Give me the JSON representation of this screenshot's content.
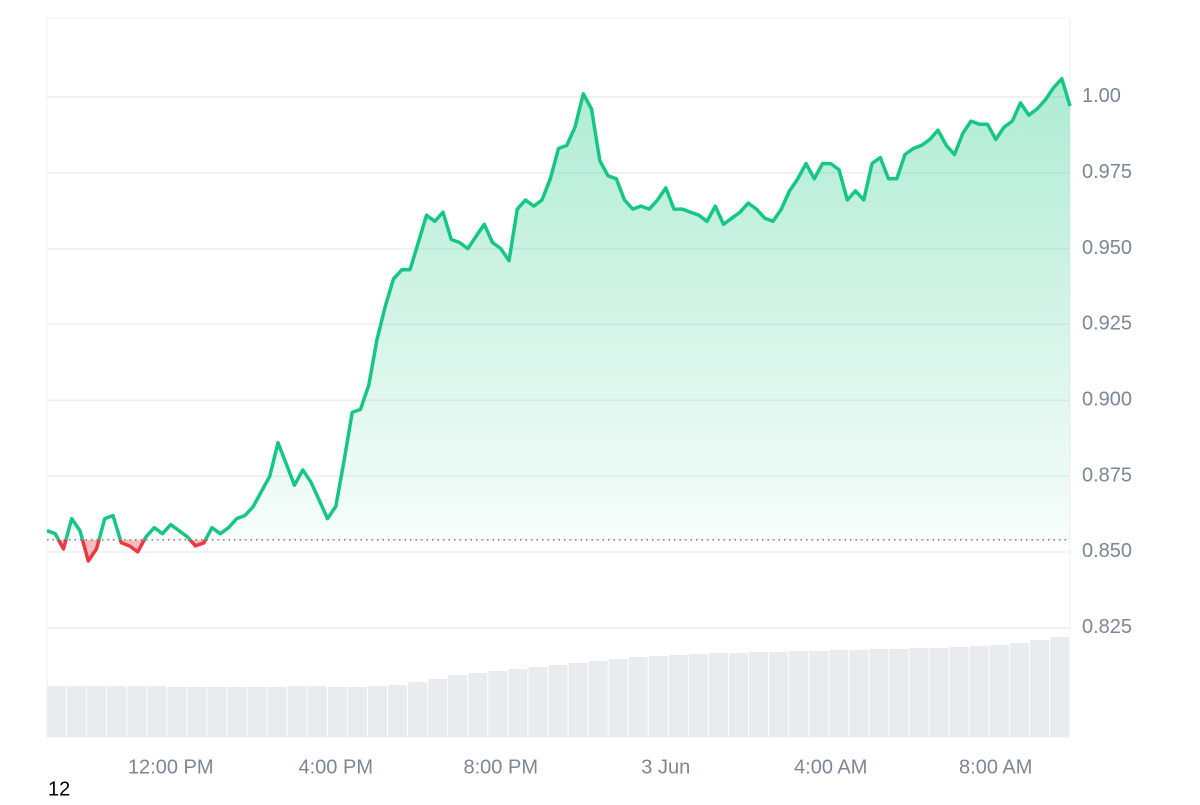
{
  "chart_data": {
    "type": "line",
    "x": [
      9.0,
      9.2,
      9.4,
      9.6,
      9.8,
      10.0,
      10.2,
      10.4,
      10.6,
      10.8,
      11.0,
      11.2,
      11.4,
      11.6,
      11.8,
      12.0,
      12.2,
      12.4,
      12.6,
      12.8,
      13.0,
      13.2,
      13.4,
      13.6,
      13.8,
      14.0,
      14.2,
      14.4,
      14.6,
      14.8,
      15.0,
      15.2,
      15.4,
      15.6,
      15.8,
      16.0,
      16.2,
      16.4,
      16.6,
      16.8,
      17.0,
      17.2,
      17.4,
      17.6,
      17.8,
      18.0,
      18.2,
      18.4,
      18.6,
      18.8,
      19.0,
      19.2,
      19.4,
      19.6,
      19.8,
      20.0,
      20.2,
      20.4,
      20.6,
      20.8,
      21.0,
      21.2,
      21.4,
      21.6,
      21.8,
      22.0,
      22.2,
      22.4,
      22.6,
      22.8,
      23.0,
      23.2,
      23.4,
      23.6,
      23.8,
      24.0,
      24.2,
      24.4,
      24.6,
      24.8,
      25.0,
      25.2,
      25.4,
      25.6,
      25.8,
      26.0,
      26.2,
      26.4,
      26.6,
      26.8,
      27.0,
      27.2,
      27.4,
      27.6,
      27.8,
      28.0,
      28.2,
      28.4,
      28.6,
      28.8,
      29.0,
      29.2,
      29.4,
      29.6,
      29.8,
      30.0,
      30.2,
      30.4,
      30.6,
      30.8,
      31.0,
      31.2,
      31.4,
      31.6,
      31.8,
      32.0,
      32.2,
      32.4,
      32.6,
      32.8,
      33.0,
      33.2,
      33.4,
      33.6,
      33.8
    ],
    "values": [
      0.857,
      0.856,
      0.851,
      0.861,
      0.857,
      0.847,
      0.851,
      0.861,
      0.862,
      0.853,
      0.852,
      0.85,
      0.855,
      0.858,
      0.856,
      0.859,
      0.857,
      0.855,
      0.852,
      0.853,
      0.858,
      0.856,
      0.858,
      0.861,
      0.862,
      0.865,
      0.87,
      0.875,
      0.886,
      0.879,
      0.872,
      0.877,
      0.873,
      0.867,
      0.861,
      0.865,
      0.88,
      0.896,
      0.897,
      0.905,
      0.92,
      0.931,
      0.94,
      0.943,
      0.943,
      0.952,
      0.961,
      0.959,
      0.962,
      0.953,
      0.952,
      0.95,
      0.954,
      0.958,
      0.952,
      0.95,
      0.946,
      0.963,
      0.966,
      0.964,
      0.966,
      0.973,
      0.983,
      0.984,
      0.99,
      1.001,
      0.996,
      0.979,
      0.974,
      0.973,
      0.966,
      0.963,
      0.964,
      0.963,
      0.966,
      0.97,
      0.963,
      0.963,
      0.962,
      0.961,
      0.959,
      0.964,
      0.958,
      0.96,
      0.962,
      0.965,
      0.963,
      0.96,
      0.959,
      0.963,
      0.969,
      0.973,
      0.978,
      0.973,
      0.978,
      0.978,
      0.976,
      0.966,
      0.969,
      0.966,
      0.978,
      0.98,
      0.973,
      0.973,
      0.981,
      0.983,
      0.984,
      0.986,
      0.989,
      0.984,
      0.981,
      0.988,
      0.992,
      0.991,
      0.991,
      0.986,
      0.99,
      0.992,
      0.998,
      0.994,
      0.996,
      0.999,
      1.003,
      1.006,
      0.997
    ],
    "baseline": 0.854,
    "up_color": "#16c784",
    "down_color": "#ea3943",
    "xlim": [
      9,
      33.8
    ],
    "xticks": [
      {
        "value": 12,
        "label": "12:00 PM"
      },
      {
        "value": 16,
        "label": "4:00 PM"
      },
      {
        "value": 20,
        "label": "8:00 PM"
      },
      {
        "value": 24,
        "label": "3 Jun"
      },
      {
        "value": 28,
        "label": "4:00 AM"
      },
      {
        "value": 32,
        "label": "8:00 AM"
      }
    ],
    "ylim": [
      0.789,
      1.026
    ],
    "yticks": [
      0.825,
      {
        "value": 0.85,
        "label": "0.850"
      },
      0.875,
      {
        "value": 0.9,
        "label": "0.900"
      },
      0.925,
      {
        "value": 0.95,
        "label": "0.950"
      },
      0.975,
      {
        "value": 1,
        "label": "1.00"
      }
    ],
    "grid": true,
    "volume": {
      "color": "#e9ebef",
      "ylim": [
        0,
        100
      ],
      "values": [
        51,
        51,
        51,
        51,
        51,
        51,
        50,
        50,
        50,
        50,
        50,
        50,
        51,
        51,
        50,
        50,
        51,
        52,
        55,
        58,
        62,
        64,
        66,
        68,
        70,
        72,
        74,
        76,
        78,
        80,
        81,
        82,
        83,
        84,
        84,
        85,
        85,
        86,
        86,
        87,
        87,
        88,
        88,
        89,
        89,
        90,
        91,
        92,
        94,
        97,
        100
      ]
    },
    "corner_label": "12"
  }
}
